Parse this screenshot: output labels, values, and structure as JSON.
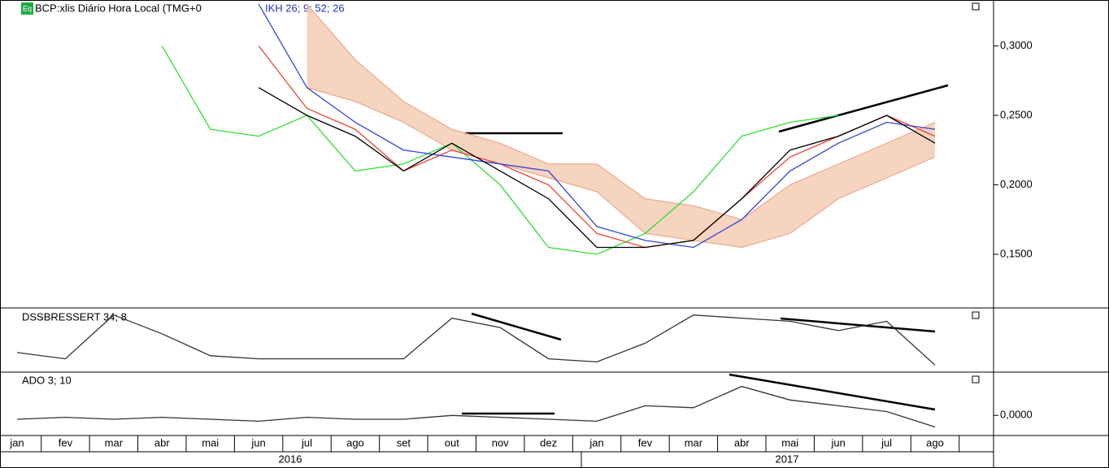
{
  "header": {
    "badge": "Eq",
    "symbol": "BCP:xlis Diário Hora Local (TMG+0",
    "indicator": "IKH 26; 9; 52; 26"
  },
  "chart_data": [
    {
      "type": "line",
      "categories": [
        "jan",
        "fev",
        "mar",
        "abr",
        "mai",
        "jun",
        "jul",
        "ago",
        "set",
        "out",
        "nov",
        "dez",
        "jan",
        "fev",
        "mar",
        "abr",
        "mai",
        "jun",
        "jul",
        "ago"
      ],
      "year_labels": [
        "2016",
        "2017"
      ],
      "ylim": [
        0.112,
        0.333
      ],
      "yticks": [
        {
          "value": 0.15,
          "label": "0,1500"
        },
        {
          "value": 0.2,
          "label": "0,2000"
        },
        {
          "value": 0.25,
          "label": "0,2500"
        },
        {
          "value": 0.3,
          "label": "0,3000"
        }
      ],
      "cloud": {
        "color": "#f2c9b0",
        "upper": [
          null,
          null,
          null,
          null,
          null,
          null,
          0.33,
          0.29,
          0.26,
          0.24,
          0.23,
          0.215,
          0.215,
          0.19,
          0.185,
          0.175,
          0.2,
          0.215,
          0.23,
          0.245
        ],
        "lower": [
          null,
          null,
          null,
          null,
          null,
          null,
          0.27,
          0.26,
          0.245,
          0.225,
          0.215,
          0.205,
          0.195,
          0.165,
          0.16,
          0.155,
          0.165,
          0.19,
          0.205,
          0.22
        ]
      },
      "series": [
        {
          "color": "#33dd33",
          "values": [
            null,
            null,
            null,
            0.3,
            0.24,
            0.235,
            0.25,
            0.21,
            0.215,
            0.23,
            0.2,
            0.155,
            0.15,
            0.165,
            0.195,
            0.235,
            0.245,
            0.25,
            null,
            null
          ]
        },
        {
          "color": "#ee4433",
          "values": [
            null,
            null,
            null,
            null,
            null,
            0.3,
            0.255,
            0.24,
            0.21,
            0.225,
            0.215,
            0.2,
            0.165,
            0.155,
            0.16,
            0.19,
            0.22,
            0.235,
            0.25,
            0.235
          ]
        },
        {
          "color": "#3344dd",
          "values": [
            null,
            null,
            null,
            null,
            null,
            0.33,
            0.27,
            0.245,
            0.225,
            0.22,
            0.215,
            0.21,
            0.17,
            0.16,
            0.155,
            0.175,
            0.21,
            0.23,
            0.245,
            0.24
          ]
        },
        {
          "color": "#000000",
          "values": [
            null,
            null,
            null,
            null,
            null,
            0.27,
            0.25,
            0.235,
            0.21,
            0.23,
            0.21,
            0.19,
            0.155,
            0.155,
            0.16,
            0.19,
            0.225,
            0.235,
            0.25,
            0.23
          ]
        }
      ]
    },
    {
      "type": "line",
      "title": "DSSBRESSERT 34; 8",
      "ylim": [
        0,
        100
      ],
      "series": [
        {
          "color": "#333333",
          "values": [
            30,
            20,
            90,
            60,
            25,
            20,
            20,
            20,
            20,
            85,
            70,
            20,
            15,
            45,
            90,
            85,
            80,
            65,
            80,
            10
          ]
        }
      ]
    },
    {
      "type": "line",
      "title": "ADO 3; 10",
      "ylim": [
        -1,
        2.2
      ],
      "yticks": [
        {
          "value": 0,
          "label": "0,0000"
        }
      ],
      "series": [
        {
          "color": "#333333",
          "values": [
            -0.2,
            -0.1,
            -0.2,
            -0.1,
            -0.2,
            -0.3,
            -0.1,
            -0.2,
            -0.2,
            0,
            -0.1,
            -0.2,
            -0.3,
            0.5,
            0.4,
            1.5,
            0.8,
            0.5,
            0.2,
            -0.6
          ]
        }
      ]
    }
  ]
}
